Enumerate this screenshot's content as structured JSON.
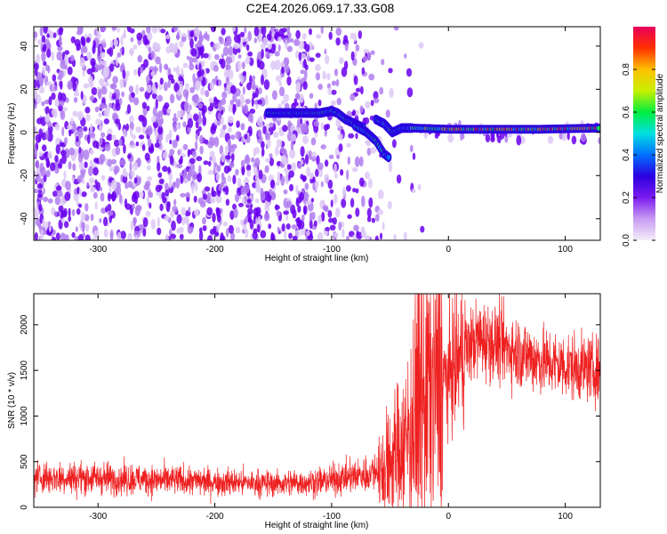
{
  "title": "C2E4.2026.069.17.33.G08",
  "colors": {
    "scatter": "#6a00f0",
    "snr_line": "#ee2020",
    "colorbar_stops": [
      "#f4eefa",
      "#c99cf2",
      "#7b1cf0",
      "#2b00e0",
      "#0070ff",
      "#00e0e0",
      "#00ee40",
      "#c8f000",
      "#ffc000",
      "#ff3000",
      "#e8005a"
    ]
  },
  "chart_data": [
    {
      "type": "heatmap",
      "name": "spectrogram",
      "xlabel": "Height of straight line (km)",
      "ylabel": "Frequency (Hz)",
      "xlim": [
        -355,
        130
      ],
      "ylim": [
        -50,
        49
      ],
      "xticks": [
        -300,
        -200,
        -100,
        0,
        100
      ],
      "yticks": [
        40,
        20,
        0,
        -20,
        -40
      ],
      "tracks": [
        {
          "name": "positive-branch",
          "points": [
            [
              -155,
              9
            ],
            [
              -140,
              9
            ],
            [
              -125,
              9
            ],
            [
              -110,
              9
            ],
            [
              -100,
              10
            ],
            [
              -95,
              9
            ],
            [
              -88,
              6
            ],
            [
              -80,
              4
            ],
            [
              -72,
              2
            ]
          ]
        },
        {
          "name": "descending-branch",
          "points": [
            [
              -80,
              3
            ],
            [
              -70,
              0
            ],
            [
              -62,
              -4
            ],
            [
              -55,
              -10
            ],
            [
              -50,
              -12
            ]
          ]
        },
        {
          "name": "rising-branch",
          "points": [
            [
              -62,
              6
            ],
            [
              -55,
              4
            ],
            [
              -48,
              0
            ],
            [
              -40,
              2
            ],
            [
              -30,
              2
            ]
          ]
        },
        {
          "name": "zero-branch",
          "points": [
            [
              -30,
              2
            ],
            [
              0,
              1.5
            ],
            [
              40,
              1.5
            ],
            [
              80,
              1.5
            ],
            [
              130,
              2
            ]
          ]
        }
      ],
      "colorbar": {
        "label": "Normalized spectral amplitude",
        "range": [
          0,
          1
        ],
        "ticks": [
          0.0,
          0.2,
          0.4,
          0.6,
          0.8
        ]
      }
    },
    {
      "type": "line",
      "name": "snr",
      "xlabel": "Height of straight line (km)",
      "ylabel": "SNR (10 * v/v)",
      "xlim": [
        -355,
        130
      ],
      "ylim": [
        0,
        2340
      ],
      "xticks": [
        -300,
        -200,
        -100,
        0,
        100
      ],
      "yticks": [
        0,
        500,
        1000,
        1500,
        2000
      ],
      "series": [
        {
          "name": "SNR",
          "x": [
            -355,
            -300,
            -250,
            -200,
            -150,
            -110,
            -90,
            -70,
            -55,
            -45,
            -35,
            -25,
            -15,
            -8,
            -2,
            10,
            25,
            40,
            60,
            80,
            100,
            130
          ],
          "values": [
            330,
            320,
            300,
            280,
            260,
            280,
            320,
            360,
            450,
            600,
            850,
            1300,
            1400,
            1450,
            1400,
            1650,
            1850,
            1800,
            1700,
            1600,
            1550,
            1500
          ]
        }
      ]
    }
  ]
}
